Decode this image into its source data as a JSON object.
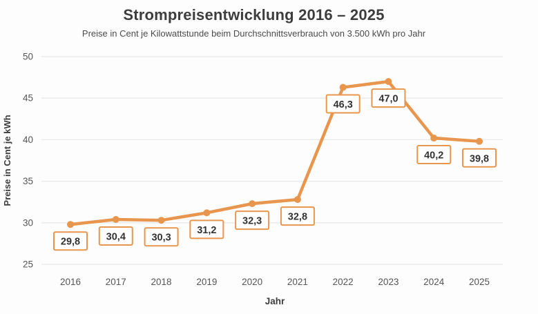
{
  "colors": {
    "background": "#fdfdfd",
    "line": "#e8954d",
    "marker": "#e8954d",
    "label_box_border": "#e8954d",
    "label_box_fill": "#fefefe",
    "label_text": "#333333",
    "gridline": "#e8e8e8",
    "tick_text": "#555555",
    "axis_title_text": "#3d3d3d",
    "title_text": "#3d3d3d"
  },
  "chart_data": {
    "type": "line",
    "title": "Strompreisentwicklung 2016 – 2025",
    "subtitle": "Preise in Cent je Kilowattstunde beim Durchschnittsverbrauch von 3.500 kWh pro Jahr",
    "xlabel": "Jahr",
    "ylabel": "Preise in Cent je kWh",
    "categories": [
      "2016",
      "2017",
      "2018",
      "2019",
      "2020",
      "2021",
      "2022",
      "2023",
      "2024",
      "2025"
    ],
    "values": [
      29.8,
      30.4,
      30.3,
      31.2,
      32.3,
      32.8,
      46.3,
      47.0,
      40.2,
      39.8
    ],
    "value_labels": [
      "29,8",
      "30,4",
      "30,3",
      "31,2",
      "32,3",
      "32,8",
      "46,3",
      "47,0",
      "40,2",
      "39,8"
    ],
    "ylim": [
      25,
      50
    ],
    "ytick_step": 5,
    "yticks": [
      "25",
      "30",
      "35",
      "40",
      "45",
      "50"
    ],
    "grid": "horizontal",
    "legend": "none",
    "marker": "circle",
    "label_style": "boxed-below-point"
  }
}
